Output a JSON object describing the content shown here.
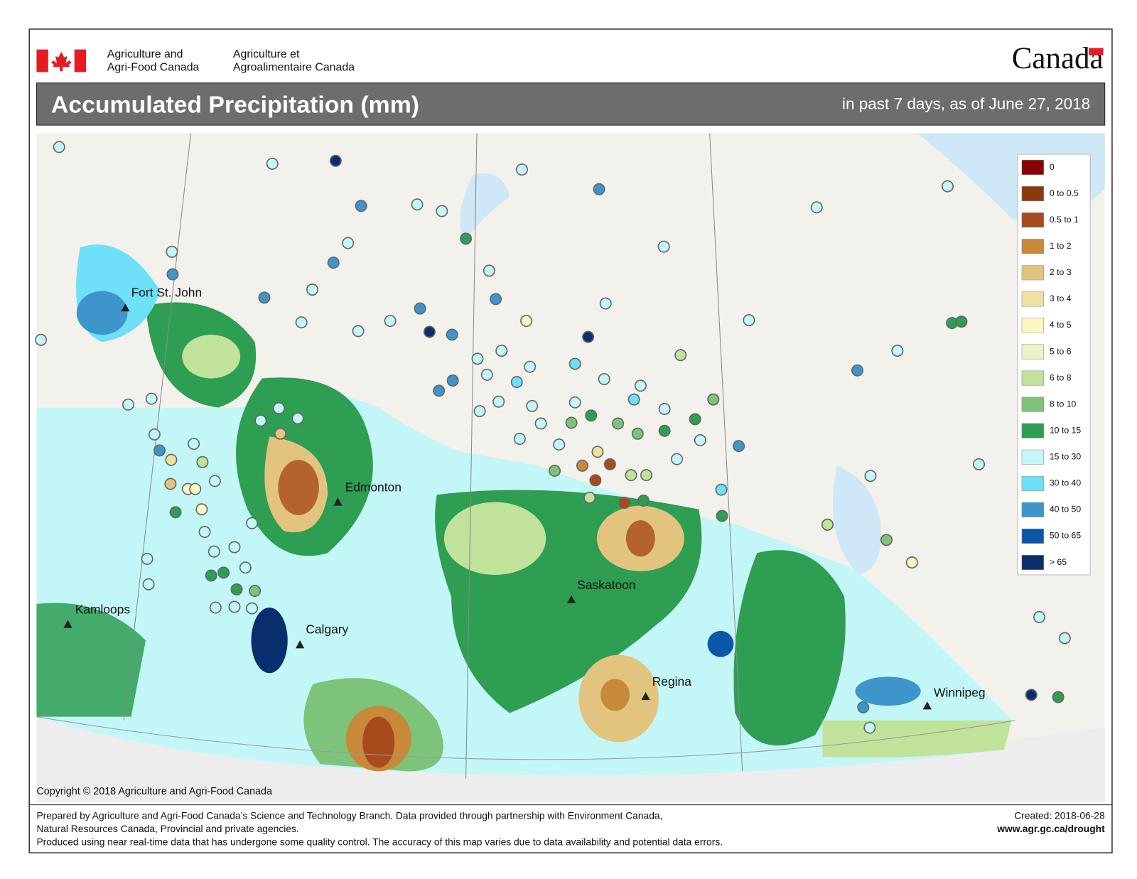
{
  "header": {
    "dept_en": [
      "Agriculture and",
      "Agri-Food Canada"
    ],
    "dept_fr": [
      "Agriculture et",
      "Agroalimentaire Canada"
    ],
    "wordmark": "Canada"
  },
  "title": "Accumulated Precipitation (mm)",
  "subtitle": "in past 7 days, as of June 27, 2018",
  "legend": [
    {
      "label": "0",
      "color": "#8b0000"
    },
    {
      "label": "0 to 0.5",
      "color": "#8b3a0f"
    },
    {
      "label": "0.5 to 1",
      "color": "#a84b1c"
    },
    {
      "label": "1 to 2",
      "color": "#c88a3a"
    },
    {
      "label": "2 to 3",
      "color": "#e3c47f"
    },
    {
      "label": "3 to 4",
      "color": "#efe19f"
    },
    {
      "label": "4 to 5",
      "color": "#fbf7c0"
    },
    {
      "label": "5 to 6",
      "color": "#e6f5c3"
    },
    {
      "label": "6 to 8",
      "color": "#c0e29a"
    },
    {
      "label": "8 to 10",
      "color": "#7dc47a"
    },
    {
      "label": "10 to 15",
      "color": "#2e9e52"
    },
    {
      "label": "15 to 30",
      "color": "#c3f7f7"
    },
    {
      "label": "30 to 40",
      "color": "#6ee0f7"
    },
    {
      "label": "40 to 50",
      "color": "#3e95cc"
    },
    {
      "label": "50 to 65",
      "color": "#0d57a8"
    },
    {
      "label": "> 65",
      "color": "#0a2d6e"
    }
  ],
  "cities": [
    "Fort St. John",
    "Edmonton",
    "Kamloops",
    "Calgary",
    "Saskatoon",
    "Regina",
    "Winnipeg"
  ],
  "copyright": "Copyright © 2018 Agriculture and Agri-Food Canada",
  "footer": [
    "Prepared by Agriculture and Agri-Food Canada’s Science and Technology Branch. Data provided through partnership with Environment Canada,",
    "Natural Resources Canada, Provincial and private agencies.",
    "Produced using near real-time data that has undergone some quality control. The accuracy of this map varies due to data availability and potential data errors."
  ],
  "created": "Created: 2018-06-28",
  "url": "www.agr.gc.ca/drought"
}
